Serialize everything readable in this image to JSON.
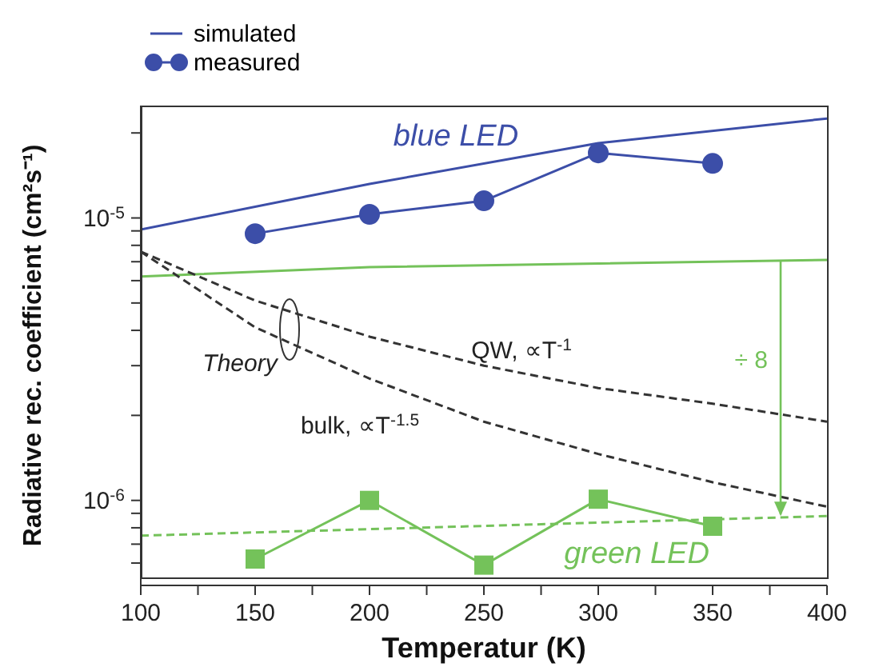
{
  "chart_data": {
    "type": "line",
    "xlabel": "Temperatur (K)",
    "ylabel": "Radiative rec. coefficient (cm²s⁻¹)",
    "log": "y",
    "xlim": [
      100,
      400
    ],
    "xticks": [
      100,
      {
        "value": 125,
        "label": null
      },
      150,
      {
        "value": 175,
        "label": null
      },
      200,
      {
        "value": 225,
        "label": null
      },
      250,
      {
        "value": 275,
        "label": null
      },
      300,
      {
        "value": 325,
        "label": null
      },
      350,
      {
        "value": 375,
        "label": null
      },
      400
    ],
    "ylim": [
      5e-07,
      2.5e-05
    ],
    "yticks": [
      {
        "value": 6e-07,
        "label": null
      },
      {
        "value": 7e-07,
        "label": null
      },
      {
        "value": 8e-07,
        "label": null
      },
      {
        "value": 9e-07,
        "label": null
      },
      {
        "value": 1e-06,
        "label": "10$^{-6}$"
      },
      {
        "value": 2e-06,
        "label": null
      },
      {
        "value": 3e-06,
        "label": null
      },
      {
        "value": 4e-06,
        "label": null
      },
      {
        "value": 5e-06,
        "label": null
      },
      {
        "value": 6e-06,
        "label": null
      },
      {
        "value": 7e-06,
        "label": null
      },
      {
        "value": 8e-06,
        "label": null
      },
      {
        "value": 9e-06,
        "label": null
      },
      {
        "value": 1e-05,
        "label": "10$^{-5}$"
      },
      {
        "value": 2e-05,
        "label": null
      }
    ],
    "grid": false,
    "legend": "top left",
    "series": [
      {
        "name": "simulated",
        "color": "#3c4ea8",
        "marker": "none",
        "line_style": "solid",
        "x": [
          100,
          200,
          300,
          400
        ],
        "values": [
          9.1e-06,
          1.32e-05,
          1.84e-05,
          2.25e-05
        ]
      },
      {
        "name": "measured",
        "color": "#3c4ea8",
        "marker": "circle",
        "line_style": "solid",
        "x": [
          150,
          200,
          250,
          300,
          350
        ],
        "values": [
          8.8e-06,
          1.03e-05,
          1.15e-05,
          1.7e-05,
          1.56e-05
        ]
      },
      {
        "color": "#74c25a",
        "marker": "none",
        "line_style": "solid",
        "x": [
          100,
          200,
          300,
          400
        ],
        "values": [
          6.2e-06,
          6.7e-06,
          6.9e-06,
          7.1e-06
        ]
      },
      {
        "color": "#74c25a",
        "marker": "square",
        "line_style": "solid",
        "x": [
          150,
          200,
          250,
          300,
          350
        ],
        "values": [
          6.2e-07,
          1e-06,
          5.9e-07,
          1.01e-06,
          8.1e-07
        ]
      },
      {
        "color": "#74c25a",
        "marker": "none",
        "line_style": "dashed",
        "x": [
          100,
          400
        ],
        "values": [
          7.5e-07,
          8.8e-07
        ]
      },
      {
        "color": "#333333",
        "marker": "none",
        "line_style": "dashed",
        "x": [
          100,
          150,
          200,
          250,
          300,
          350,
          400
        ],
        "values": [
          7.6e-06,
          5.1e-06,
          3.8e-06,
          3e-06,
          2.5e-06,
          2.2e-06,
          1.9e-06
        ]
      },
      {
        "color": "#333333",
        "marker": "none",
        "line_style": "dashed",
        "x": [
          100,
          150,
          200,
          250,
          300,
          350,
          400
        ],
        "values": [
          7.6e-06,
          4.1e-06,
          2.7e-06,
          1.9e-06,
          1.46e-06,
          1.16e-06,
          9.5e-07
        ]
      }
    ],
    "annotations": [
      "blue LED",
      "green LED",
      "Theory",
      "QW, ∝T$^{-1}$",
      "bulk, ∝T$^{-1.5}$",
      "÷ 8"
    ]
  }
}
